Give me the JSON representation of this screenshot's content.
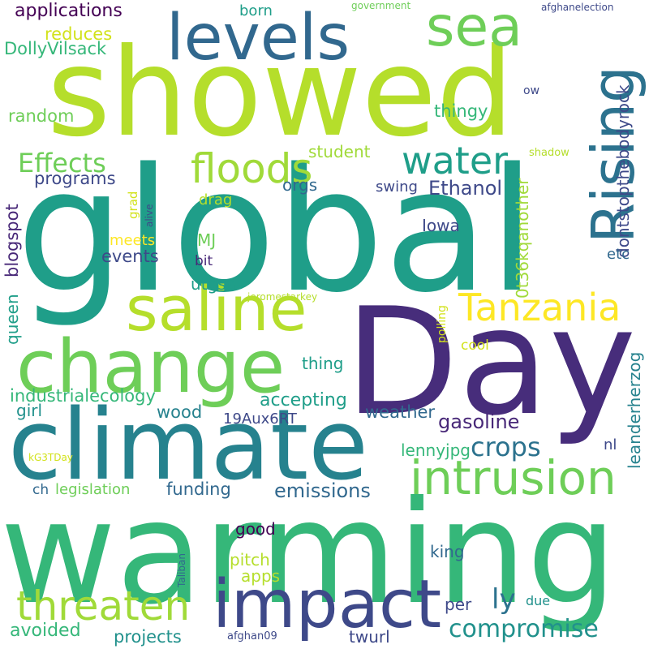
{
  "words": [
    {
      "text": "showed",
      "color": "#b5de2b"
    },
    {
      "text": "global",
      "color": "#1f9e89"
    },
    {
      "text": "warming",
      "color": "#35b779"
    },
    {
      "text": "Day",
      "color": "#472d7b"
    },
    {
      "text": "climate",
      "color": "#26828e"
    },
    {
      "text": "change",
      "color": "#6ece58"
    },
    {
      "text": "levels",
      "color": "#31688e"
    },
    {
      "text": "impact",
      "color": "#3e4989"
    },
    {
      "text": "saline",
      "color": "#b5de2b"
    },
    {
      "text": "sea",
      "color": "#6ece58"
    },
    {
      "text": "Rising",
      "color": "#2c728e"
    },
    {
      "text": "intrusion",
      "color": "#6ece58"
    },
    {
      "text": "floods",
      "color": "#a0da39"
    },
    {
      "text": "Tanzania",
      "color": "#fde725"
    },
    {
      "text": "threaten",
      "color": "#a0da39"
    },
    {
      "text": "water",
      "color": "#1f9e89"
    },
    {
      "text": "crops",
      "color": "#2c728e"
    },
    {
      "text": "compromise",
      "color": "#21918c"
    },
    {
      "text": "Effects",
      "color": "#6ece58"
    },
    {
      "text": "gasoline",
      "color": "#482878"
    },
    {
      "text": "emissions",
      "color": "#31688e"
    },
    {
      "text": "Ethanol",
      "color": "#3e4989"
    },
    {
      "text": "avoided",
      "color": "#35b779"
    },
    {
      "text": "applications",
      "color": "#440154"
    },
    {
      "text": "accepting",
      "color": "#1f9e89"
    },
    {
      "text": "industrialecology",
      "color": "#35b779"
    },
    {
      "text": "DollyVilsack",
      "color": "#35b779"
    },
    {
      "text": "projects",
      "color": "#21918c"
    },
    {
      "text": "programs",
      "color": "#3e4989"
    },
    {
      "text": "funding",
      "color": "#31688e"
    },
    {
      "text": "legislation",
      "color": "#6ece58"
    },
    {
      "text": "random",
      "color": "#6ece58"
    },
    {
      "text": "reduces",
      "color": "#d2e21b"
    },
    {
      "text": "weather",
      "color": "#31688e"
    },
    {
      "text": "wood",
      "color": "#26828e"
    },
    {
      "text": "thingy",
      "color": "#35b779"
    },
    {
      "text": "events",
      "color": "#3e4989"
    },
    {
      "text": "student",
      "color": "#a0da39"
    },
    {
      "text": "lennyjpg",
      "color": "#35b779"
    },
    {
      "text": "blogspot",
      "color": "#482878"
    },
    {
      "text": "dontstopthebodyrock",
      "color": "#3e4989"
    },
    {
      "text": "leanderherzog",
      "color": "#26828e"
    },
    {
      "text": "0t36kqanother",
      "color": "#a0da39"
    },
    {
      "text": "19Aux6RT",
      "color": "#3e4989"
    },
    {
      "text": "thing",
      "color": "#1f9e89"
    },
    {
      "text": "twurl",
      "color": "#3e4989"
    },
    {
      "text": "ly",
      "color": "#2c728e"
    },
    {
      "text": "per",
      "color": "#3e4989"
    },
    {
      "text": "king",
      "color": "#31688e"
    },
    {
      "text": "good",
      "color": "#440154"
    },
    {
      "text": "pitch",
      "color": "#b5de2b"
    },
    {
      "text": "apps",
      "color": "#b5de2b"
    },
    {
      "text": "girl",
      "color": "#21918c"
    },
    {
      "text": "queen",
      "color": "#1f9e89"
    },
    {
      "text": "orgs",
      "color": "#31688e"
    },
    {
      "text": "utgsa",
      "color": "#1f9e89"
    },
    {
      "text": "swing",
      "color": "#3e4989"
    },
    {
      "text": "Iowa",
      "color": "#3e4989"
    },
    {
      "text": "MJ",
      "color": "#6ece58"
    },
    {
      "text": "drag",
      "color": "#b5de2b"
    },
    {
      "text": "meets",
      "color": "#fde725"
    },
    {
      "text": "bit",
      "color": "#482878"
    },
    {
      "text": "born",
      "color": "#1f9e89"
    },
    {
      "text": "etc",
      "color": "#31688e"
    },
    {
      "text": "nl",
      "color": "#3e4989"
    },
    {
      "text": "ch",
      "color": "#31688e"
    },
    {
      "text": "cool",
      "color": "#d2e21b"
    },
    {
      "text": "due",
      "color": "#21918c"
    },
    {
      "text": "grad",
      "color": "#d2e21b"
    },
    {
      "text": "polling",
      "color": "#d2e21b"
    },
    {
      "text": "ow",
      "color": "#3e4989"
    },
    {
      "text": "shadow",
      "color": "#b5de2b"
    },
    {
      "text": "alive",
      "color": "#3e4989"
    },
    {
      "text": "government",
      "color": "#6ece58"
    },
    {
      "text": "afghanelection",
      "color": "#3e4989"
    },
    {
      "text": "jeromestarkey",
      "color": "#b5de2b"
    },
    {
      "text": "kG3TDay",
      "color": "#d2e21b"
    },
    {
      "text": "Taliban",
      "color": "#31688e"
    },
    {
      "text": "afghan09",
      "color": "#3e4989"
    }
  ]
}
